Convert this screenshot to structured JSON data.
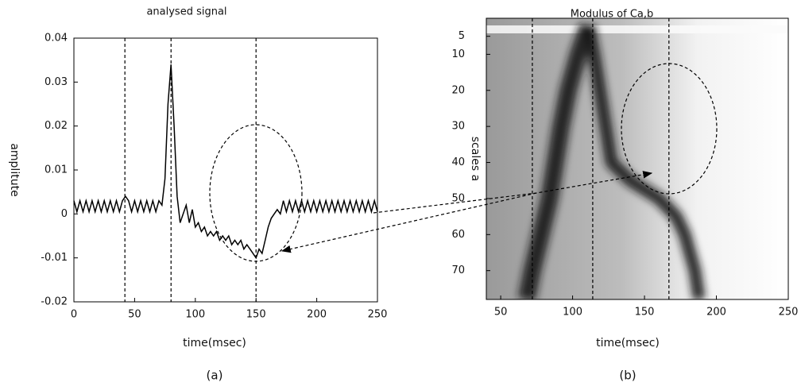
{
  "chart_data": [
    {
      "type": "line",
      "title": "analysed signal",
      "xlabel": "time(msec)",
      "ylabel": "amplitute",
      "caption": "(a)",
      "xlim": [
        0,
        250
      ],
      "ylim": [
        -0.02,
        0.04
      ],
      "xticks": [
        0,
        50,
        100,
        150,
        200,
        250
      ],
      "yticks": [
        -0.02,
        -0.01,
        0,
        0.01,
        0.02,
        0.03,
        0.04
      ],
      "color": "#000000",
      "vlines": [
        42,
        80,
        150
      ],
      "x": [
        0,
        2.5,
        5,
        7.5,
        10,
        12.5,
        15,
        17.5,
        20,
        22.5,
        25,
        27.5,
        30,
        32.5,
        35,
        37.5,
        40,
        42.5,
        45,
        47.5,
        50,
        52.5,
        55,
        57.5,
        60,
        62.5,
        65,
        67.5,
        70,
        72.5,
        75,
        77.5,
        80,
        82.5,
        85,
        87.5,
        90,
        92.5,
        95,
        97.5,
        100,
        102.5,
        105,
        107.5,
        110,
        112.5,
        115,
        117.5,
        120,
        122.5,
        125,
        127.5,
        130,
        132.5,
        135,
        137.5,
        140,
        142.5,
        145,
        147.5,
        150,
        152.5,
        155,
        157.5,
        160,
        162.5,
        165,
        167.5,
        170,
        172.5,
        175,
        177.5,
        180,
        182.5,
        185,
        187.5,
        190,
        192.5,
        195,
        197.5,
        200,
        202.5,
        205,
        207.5,
        210,
        212.5,
        215,
        217.5,
        220,
        222.5,
        225,
        227.5,
        230,
        232.5,
        235,
        237.5,
        240,
        242.5,
        245,
        247.5,
        250
      ],
      "values": [
        0.003,
        0.0005,
        0.003,
        0.0005,
        0.003,
        0.0005,
        0.003,
        0.0005,
        0.003,
        0.0005,
        0.003,
        0.0005,
        0.003,
        0.0005,
        0.003,
        0.0005,
        0.003,
        0.004,
        0.003,
        0.0005,
        0.003,
        0.0005,
        0.003,
        0.0005,
        0.003,
        0.0005,
        0.003,
        0.0005,
        0.003,
        0.002,
        0.008,
        0.025,
        0.034,
        0.02,
        0.004,
        -0.002,
        0.0,
        0.002,
        -0.002,
        0.001,
        -0.003,
        -0.002,
        -0.004,
        -0.003,
        -0.005,
        -0.004,
        -0.005,
        -0.004,
        -0.006,
        -0.005,
        -0.006,
        -0.005,
        -0.007,
        -0.006,
        -0.007,
        -0.006,
        -0.008,
        -0.007,
        -0.008,
        -0.009,
        -0.01,
        -0.008,
        -0.009,
        -0.006,
        -0.003,
        -0.001,
        0.0,
        0.001,
        0.0,
        0.003,
        0.0005,
        0.003,
        0.0005,
        0.003,
        0.0005,
        0.003,
        0.0005,
        0.003,
        0.0005,
        0.003,
        0.0005,
        0.003,
        0.0005,
        0.003,
        0.0005,
        0.003,
        0.0005,
        0.003,
        0.0005,
        0.003,
        0.0005,
        0.003,
        0.0005,
        0.003,
        0.0005,
        0.003,
        0.0005,
        0.003,
        0.0005,
        0.003,
        0.0005
      ]
    },
    {
      "type": "scalogram",
      "title": "Modulus of Ca,b",
      "xlabel": "time(msec)",
      "ylabel": "scales a",
      "caption": "(b)",
      "xlim": [
        40,
        250
      ],
      "ylim": [
        0,
        78
      ],
      "y_inverted": true,
      "xticks": [
        50,
        100,
        150,
        200,
        250
      ],
      "yticks": [
        5,
        10,
        20,
        30,
        40,
        50,
        60,
        70
      ],
      "vlines": [
        72,
        114,
        167
      ],
      "ridges": [
        {
          "x": [
            111,
            104,
            97,
            92,
            88,
            84,
            78,
            72,
            68
          ],
          "y": [
            2,
            10,
            20,
            30,
            40,
            50,
            60,
            70,
            78
          ]
        },
        {
          "x": [
            111,
            115,
            119,
            123,
            127,
            140,
            160,
            172,
            178,
            185,
            188
          ],
          "y": [
            2,
            10,
            20,
            30,
            40,
            45,
            50,
            55,
            60,
            70,
            78
          ]
        }
      ]
    }
  ]
}
